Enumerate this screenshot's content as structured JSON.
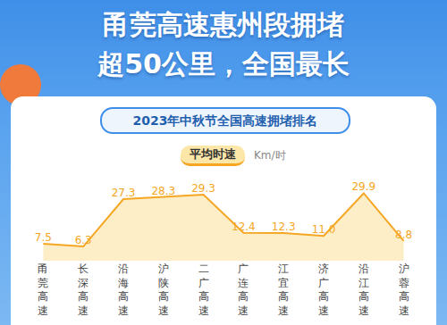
{
  "chart_data": {
    "type": "line",
    "title": [
      "甬莞高速惠州段拥堵",
      "超50公里，全国最长"
    ],
    "subtitle": "2023年中秋节全国高速拥堵排名",
    "ylabel": "Km/时",
    "categories": [
      "甬莞高速",
      "长深高速",
      "沿海高速",
      "沪陕高速",
      "二广高速",
      "广连高速",
      "江宜高速",
      "济广高速",
      "沿江高速",
      "沪蓉高速"
    ],
    "series": [
      {
        "name": "平均时速",
        "color": "#f5a623",
        "values": [
          7.5,
          6.3,
          27.3,
          28.3,
          29.3,
          12.4,
          12.3,
          11.0,
          29.9,
          8.8
        ],
        "value_labels": [
          "7.5",
          "6.3",
          "27.3",
          "28.3",
          "29.3",
          "12.4",
          "12.3",
          "11.0",
          "29.9",
          "8.8"
        ]
      }
    ],
    "ylim": [
      0,
      38
    ],
    "grid": false,
    "data_labels": true,
    "tick_labels": "x"
  }
}
